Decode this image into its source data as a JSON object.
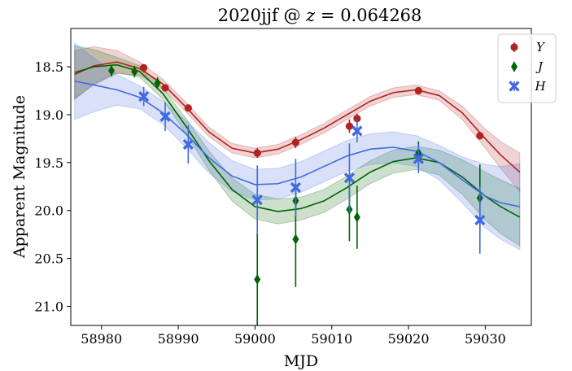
{
  "chart_data": {
    "type": "scatter",
    "title_main": "2020jjf @ ",
    "title_var": "z",
    "title_eq": " = 0.064268",
    "xlabel": "MJD",
    "ylabel": "Apparent Magnitude",
    "xlim": [
      58976,
      59036
    ],
    "ylim": [
      21.2,
      18.1
    ],
    "y_inverted": true,
    "xticks": [
      58980,
      58990,
      59000,
      59010,
      59020,
      59030
    ],
    "yticks": [
      18.5,
      19.0,
      19.5,
      20.0,
      20.5,
      21.0
    ],
    "xtick_labels": [
      "58980",
      "58990",
      "59000",
      "59010",
      "59020",
      "59030"
    ],
    "ytick_labels": [
      "18.5",
      "19.0",
      "19.5",
      "20.0",
      "20.5",
      "21.0"
    ],
    "legend_position": "top-right",
    "grid": false,
    "series": [
      {
        "name": "Y",
        "color": "#b22222",
        "marker": "circle",
        "points": [
          {
            "x": 58985.5,
            "y": 18.51,
            "err": 0.03
          },
          {
            "x": 58988.3,
            "y": 18.72,
            "err": 0.03
          },
          {
            "x": 58991.3,
            "y": 18.93,
            "err": 0.03
          },
          {
            "x": 59000.3,
            "y": 19.4,
            "err": 0.05
          },
          {
            "x": 59005.3,
            "y": 19.29,
            "err": 0.06
          },
          {
            "x": 59012.3,
            "y": 19.12,
            "err": 0.07
          },
          {
            "x": 59013.3,
            "y": 19.04,
            "err": 0.05
          },
          {
            "x": 59021.3,
            "y": 18.75,
            "err": 0.03
          },
          {
            "x": 59029.3,
            "y": 19.22,
            "err": 0.04
          }
        ],
        "curve": {
          "x": [
            58976.5,
            58979,
            58982,
            58985,
            58988,
            58991,
            58994,
            58997,
            59000,
            59003,
            59006,
            59009,
            59012,
            59015,
            59018,
            59021,
            59024,
            59027,
            59030,
            59032,
            59034.5
          ],
          "y": [
            18.58,
            18.49,
            18.45,
            18.52,
            18.68,
            18.92,
            19.18,
            19.35,
            19.4,
            19.36,
            19.26,
            19.14,
            19.0,
            18.86,
            18.77,
            18.74,
            18.8,
            18.98,
            19.25,
            19.42,
            19.6
          ],
          "band": [
            0.25,
            0.2,
            0.12,
            0.07,
            0.05,
            0.05,
            0.05,
            0.05,
            0.05,
            0.05,
            0.05,
            0.05,
            0.05,
            0.05,
            0.05,
            0.05,
            0.05,
            0.07,
            0.1,
            0.14,
            0.2
          ]
        }
      },
      {
        "name": "J",
        "color": "#006400",
        "marker": "diamond",
        "points": [
          {
            "x": 58981.3,
            "y": 18.54,
            "err": 0.06
          },
          {
            "x": 58984.3,
            "y": 18.55,
            "err": 0.06
          },
          {
            "x": 58987.3,
            "y": 18.67,
            "err": 0.06
          },
          {
            "x": 59000.3,
            "y": 20.72,
            "err": 0.48
          },
          {
            "x": 59005.3,
            "y": 19.9,
            "err": 0.1
          },
          {
            "x": 59005.3,
            "y": 20.3,
            "err": 0.5
          },
          {
            "x": 59012.3,
            "y": 19.99,
            "err": 0.33
          },
          {
            "x": 59013.3,
            "y": 20.07,
            "err": 0.33
          },
          {
            "x": 59021.3,
            "y": 19.4,
            "err": 0.12
          },
          {
            "x": 59029.3,
            "y": 19.87,
            "err": 0.35
          }
        ],
        "curve": {
          "x": [
            58976.5,
            58979,
            58982,
            58985,
            58988,
            58991,
            58994,
            58997,
            59000,
            59003,
            59006,
            59009,
            59012,
            59015,
            59018,
            59021,
            59024,
            59027,
            59030,
            59032,
            59034.5
          ],
          "y": [
            18.56,
            18.5,
            18.48,
            18.55,
            18.78,
            19.12,
            19.48,
            19.78,
            19.96,
            20.01,
            19.98,
            19.9,
            19.76,
            19.6,
            19.49,
            19.45,
            19.5,
            19.65,
            19.85,
            19.96,
            20.07
          ],
          "band": [
            0.28,
            0.18,
            0.08,
            0.06,
            0.06,
            0.08,
            0.1,
            0.12,
            0.13,
            0.13,
            0.12,
            0.12,
            0.12,
            0.12,
            0.12,
            0.12,
            0.13,
            0.18,
            0.25,
            0.28,
            0.3
          ]
        }
      },
      {
        "name": "H",
        "color": "#4169e1",
        "marker": "x",
        "points": [
          {
            "x": 58985.5,
            "y": 18.81,
            "err": 0.1
          },
          {
            "x": 58988.3,
            "y": 19.02,
            "err": 0.15
          },
          {
            "x": 58991.3,
            "y": 19.31,
            "err": 0.2
          },
          {
            "x": 59000.3,
            "y": 19.89,
            "err": 0.36
          },
          {
            "x": 59005.3,
            "y": 19.76,
            "err": 0.3
          },
          {
            "x": 59012.3,
            "y": 19.66,
            "err": 0.36
          },
          {
            "x": 59013.3,
            "y": 19.17,
            "err": 0.12
          },
          {
            "x": 59021.3,
            "y": 19.46,
            "err": 0.15
          },
          {
            "x": 59029.3,
            "y": 20.1,
            "err": 0.35
          }
        ],
        "curve": {
          "x": [
            58976.5,
            58979,
            58982,
            58985,
            58988,
            58991,
            58994,
            58997,
            59000,
            59003,
            59006,
            59009,
            59012,
            59015,
            59018,
            59021,
            59024,
            59027,
            59030,
            59032,
            59034.5
          ],
          "y": [
            18.65,
            18.69,
            18.74,
            18.82,
            18.98,
            19.2,
            19.45,
            19.64,
            19.73,
            19.72,
            19.65,
            19.54,
            19.43,
            19.36,
            19.34,
            19.38,
            19.5,
            19.68,
            19.85,
            19.92,
            19.96
          ],
          "band": [
            0.4,
            0.28,
            0.16,
            0.12,
            0.12,
            0.14,
            0.16,
            0.16,
            0.16,
            0.16,
            0.16,
            0.16,
            0.16,
            0.16,
            0.16,
            0.16,
            0.18,
            0.24,
            0.33,
            0.38,
            0.45
          ]
        }
      }
    ]
  }
}
